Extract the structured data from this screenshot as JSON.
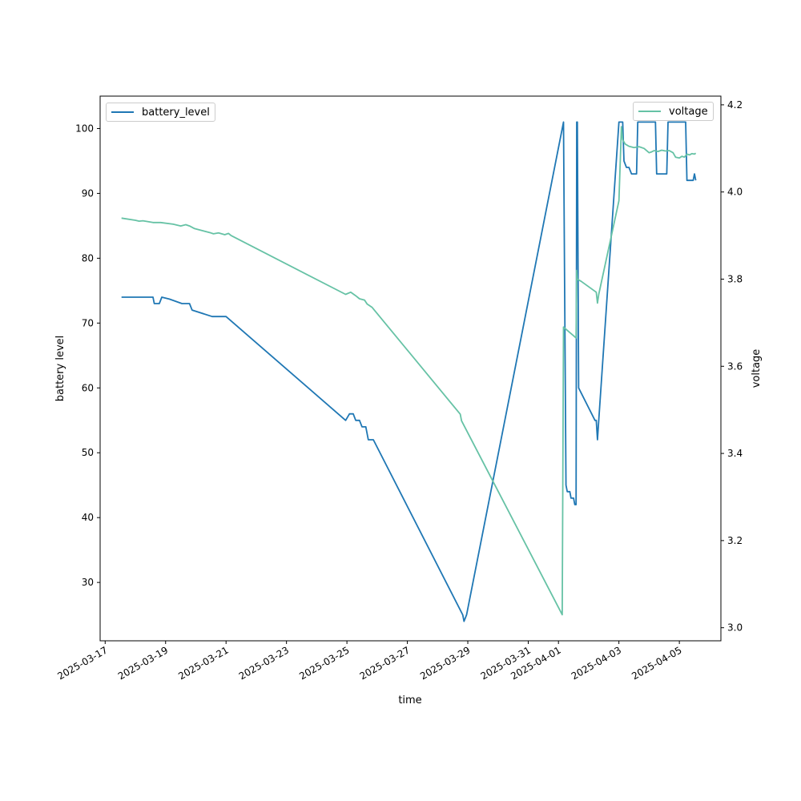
{
  "chart_data": {
    "type": "line",
    "xlabel": "time",
    "ylabel_left": "battery level",
    "ylabel_right": "voltage",
    "x_ticks": [
      "2025-03-17",
      "2025-03-19",
      "2025-03-21",
      "2025-03-23",
      "2025-03-25",
      "2025-03-27",
      "2025-03-29",
      "2025-03-31",
      "2025-04-01",
      "2025-04-03",
      "2025-04-05"
    ],
    "xlim": [
      "2025-03-16T20:00",
      "2025-04-06T09:00"
    ],
    "ylim_left": [
      21,
      105
    ],
    "yticks_left": [
      30,
      40,
      50,
      60,
      70,
      80,
      90,
      100
    ],
    "ylim_right": [
      2.97,
      4.22
    ],
    "yticks_right": [
      3.0,
      3.2,
      3.4,
      3.6,
      3.8,
      4.0,
      4.2
    ],
    "legends": {
      "left": "top-left",
      "right": "top-right"
    },
    "series": [
      {
        "name": "battery_level",
        "axis": "left",
        "color": "#1f77b4",
        "points": [
          [
            "2025-03-17T13:00",
            74
          ],
          [
            "2025-03-18T14:00",
            74
          ],
          [
            "2025-03-18T15:00",
            73
          ],
          [
            "2025-03-18T19:00",
            73
          ],
          [
            "2025-03-18T21:00",
            74
          ],
          [
            "2025-03-19T03:00",
            73.7
          ],
          [
            "2025-03-19T13:00",
            73
          ],
          [
            "2025-03-19T19:00",
            73
          ],
          [
            "2025-03-19T21:00",
            72
          ],
          [
            "2025-03-20T13:00",
            71
          ],
          [
            "2025-03-20T21:00",
            71
          ],
          [
            "2025-03-21T00:00",
            71
          ],
          [
            "2025-03-24T23:00",
            55
          ],
          [
            "2025-03-25T02:00",
            56
          ],
          [
            "2025-03-25T05:00",
            56
          ],
          [
            "2025-03-25T07:00",
            55
          ],
          [
            "2025-03-25T10:00",
            55
          ],
          [
            "2025-03-25T12:00",
            54
          ],
          [
            "2025-03-25T15:00",
            54
          ],
          [
            "2025-03-25T17:00",
            52
          ],
          [
            "2025-03-25T21:00",
            52
          ],
          [
            "2025-03-28T20:00",
            25
          ],
          [
            "2025-03-28T21:00",
            24
          ],
          [
            "2025-03-28T23:00",
            25
          ],
          [
            "2025-04-01T04:00",
            101
          ],
          [
            "2025-04-01T06:00",
            45
          ],
          [
            "2025-04-01T07:00",
            44
          ],
          [
            "2025-04-01T09:00",
            44
          ],
          [
            "2025-04-01T10:00",
            43
          ],
          [
            "2025-04-01T12:00",
            43
          ],
          [
            "2025-04-01T13:00",
            42
          ],
          [
            "2025-04-01T14:00",
            42
          ],
          [
            "2025-04-01T14:30",
            101
          ],
          [
            "2025-04-01T15:00",
            101
          ],
          [
            "2025-04-01T16:00",
            60
          ],
          [
            "2025-04-02T05:00",
            55
          ],
          [
            "2025-04-02T06:00",
            55
          ],
          [
            "2025-04-02T07:00",
            52
          ],
          [
            "2025-04-02T08:00",
            55
          ],
          [
            "2025-04-03T00:00",
            101
          ],
          [
            "2025-04-03T03:00",
            101
          ],
          [
            "2025-04-03T04:00",
            95
          ],
          [
            "2025-04-03T06:00",
            94
          ],
          [
            "2025-04-03T08:00",
            94
          ],
          [
            "2025-04-03T10:00",
            93
          ],
          [
            "2025-04-03T14:00",
            93
          ],
          [
            "2025-04-03T15:00",
            101
          ],
          [
            "2025-04-04T05:00",
            101
          ],
          [
            "2025-04-04T06:00",
            93
          ],
          [
            "2025-04-04T14:00",
            93
          ],
          [
            "2025-04-04T15:00",
            101
          ],
          [
            "2025-04-05T05:00",
            101
          ],
          [
            "2025-04-05T06:00",
            92
          ],
          [
            "2025-04-05T09:00",
            92
          ],
          [
            "2025-04-05T11:00",
            92
          ],
          [
            "2025-04-05T12:00",
            93
          ],
          [
            "2025-04-05T13:00",
            92
          ]
        ]
      },
      {
        "name": "voltage",
        "axis": "right",
        "color": "#66c2a5",
        "points": [
          [
            "2025-03-17T13:00",
            3.94
          ],
          [
            "2025-03-18T00:00",
            3.935
          ],
          [
            "2025-03-18T03:00",
            3.933
          ],
          [
            "2025-03-18T06:00",
            3.934
          ],
          [
            "2025-03-18T14:00",
            3.93
          ],
          [
            "2025-03-18T20:00",
            3.93
          ],
          [
            "2025-03-19T06:00",
            3.926
          ],
          [
            "2025-03-19T12:00",
            3.922
          ],
          [
            "2025-03-19T16:00",
            3.925
          ],
          [
            "2025-03-19T19:00",
            3.922
          ],
          [
            "2025-03-19T23:00",
            3.916
          ],
          [
            "2025-03-20T12:00",
            3.906
          ],
          [
            "2025-03-20T14:00",
            3.904
          ],
          [
            "2025-03-20T18:00",
            3.906
          ],
          [
            "2025-03-20T23:00",
            3.902
          ],
          [
            "2025-03-21T02:00",
            3.905
          ],
          [
            "2025-03-21T04:00",
            3.9
          ],
          [
            "2025-03-24T23:00",
            3.765
          ],
          [
            "2025-03-25T03:00",
            3.77
          ],
          [
            "2025-03-25T07:00",
            3.762
          ],
          [
            "2025-03-25T10:00",
            3.755
          ],
          [
            "2025-03-25T14:00",
            3.752
          ],
          [
            "2025-03-25T16:00",
            3.743
          ],
          [
            "2025-03-25T20:00",
            3.735
          ],
          [
            "2025-03-28T18:00",
            3.49
          ],
          [
            "2025-03-28T19:00",
            3.475
          ],
          [
            "2025-04-01T03:00",
            3.03
          ],
          [
            "2025-04-01T04:00",
            3.69
          ],
          [
            "2025-04-01T08:00",
            3.68
          ],
          [
            "2025-04-01T12:00",
            3.67
          ],
          [
            "2025-04-01T14:00",
            3.665
          ],
          [
            "2025-04-01T14:30",
            3.82
          ],
          [
            "2025-04-01T15:00",
            3.8
          ],
          [
            "2025-04-01T18:00",
            3.795
          ],
          [
            "2025-04-02T06:00",
            3.77
          ],
          [
            "2025-04-02T07:00",
            3.745
          ],
          [
            "2025-04-02T08:00",
            3.765
          ],
          [
            "2025-04-03T00:00",
            3.98
          ],
          [
            "2025-04-03T02:00",
            4.15
          ],
          [
            "2025-04-03T03:00",
            4.12
          ],
          [
            "2025-04-03T05:00",
            4.11
          ],
          [
            "2025-04-03T08:00",
            4.105
          ],
          [
            "2025-04-03T12:00",
            4.102
          ],
          [
            "2025-04-03T16:00",
            4.104
          ],
          [
            "2025-04-03T20:00",
            4.1
          ],
          [
            "2025-04-04T00:00",
            4.09
          ],
          [
            "2025-04-04T02:00",
            4.092
          ],
          [
            "2025-04-04T04:00",
            4.095
          ],
          [
            "2025-04-04T07:00",
            4.093
          ],
          [
            "2025-04-04T10:00",
            4.096
          ],
          [
            "2025-04-04T13:00",
            4.094
          ],
          [
            "2025-04-04T16:00",
            4.095
          ],
          [
            "2025-04-04T19:00",
            4.09
          ],
          [
            "2025-04-04T21:00",
            4.08
          ],
          [
            "2025-04-05T00:00",
            4.078
          ],
          [
            "2025-04-05T02:00",
            4.082
          ],
          [
            "2025-04-05T04:00",
            4.08
          ],
          [
            "2025-04-05T06:00",
            4.087
          ],
          [
            "2025-04-05T08:00",
            4.085
          ],
          [
            "2025-04-05T10:00",
            4.088
          ],
          [
            "2025-04-05T12:00",
            4.087
          ],
          [
            "2025-04-05T13:00",
            4.089
          ]
        ]
      }
    ]
  }
}
